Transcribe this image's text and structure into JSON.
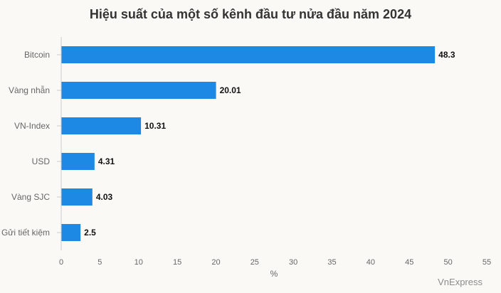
{
  "chart_data": {
    "type": "bar",
    "orientation": "horizontal",
    "title": "Hiệu suất của một số kênh đầu tư nửa đầu năm 2024",
    "categories": [
      "Bitcoin",
      "Vàng nhẫn",
      "VN-Index",
      "USD",
      "Vàng SJC",
      "Gửi tiết kiệm"
    ],
    "values": [
      48.3,
      20.01,
      10.31,
      4.31,
      4.03,
      2.5
    ],
    "value_labels": [
      "48.3",
      "20.01",
      "10.31",
      "4.31",
      "4.03",
      "2.5"
    ],
    "xlabel": "%",
    "ylabel": "",
    "xlim": [
      0,
      55
    ],
    "xticks": [
      0,
      5,
      10,
      15,
      20,
      25,
      30,
      35,
      40,
      45,
      50,
      55
    ],
    "grid": false,
    "bar_color": "#1e88e5",
    "axis_color": "#cccccc",
    "label_color": "#666666"
  },
  "source": "VnExpress"
}
